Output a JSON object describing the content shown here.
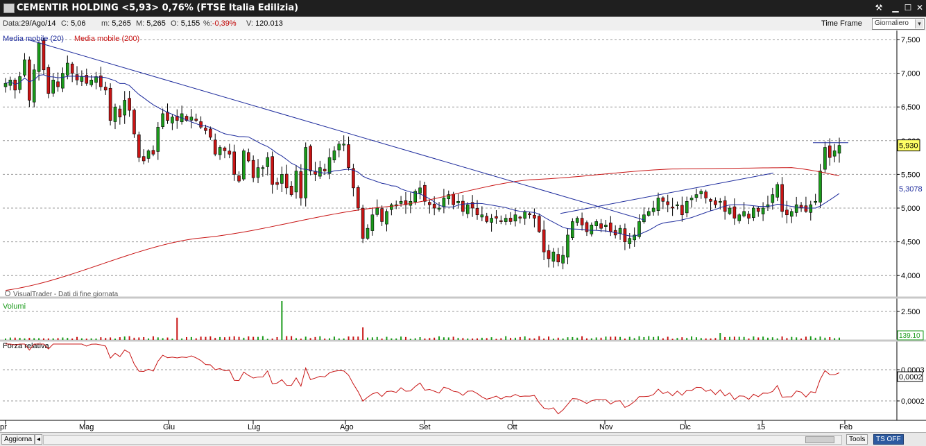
{
  "window": {
    "title": "CEMENTIR HOLDING <5,93> 0,76%  (FTSE Italia Edilizia)",
    "controls": [
      "tools-icon",
      "minimize-icon",
      "maximize-icon",
      "close-icon"
    ]
  },
  "info": {
    "data_label": "Data:",
    "data": "29/Ago/14",
    "c_label": "C:",
    "c": "5,06",
    "m_label": "m:",
    "m": "5,265",
    "o_label": "O:",
    "o": "5,155",
    "pct_label": "%:",
    "pct": "-0,39%",
    "v_label": "V:",
    "v": "120.013",
    "timeframe_label": "Time Frame",
    "timeframe_value": "Giornaliero"
  },
  "bottom": {
    "refresh": "Aggiorna",
    "tools": "Tools",
    "ts": "TS OFF"
  },
  "colors": {
    "up": "#1a9a1a",
    "down": "#c81414",
    "ma20": "#1c2a9c",
    "ma200": "#c81414",
    "trend": "#1c2a9c",
    "rsi": "#c81414",
    "vol_up": "#1a9a1a",
    "vol_down": "#c81414"
  },
  "chart_data": {
    "type": "candlestick",
    "price_panel": {
      "legend": [
        "Media mobile (20)",
        "Media mobile (200)"
      ],
      "watermark": "VisualTrader - Dati di fine giornata",
      "yticks": [
        "7,500",
        "7,000",
        "6,500",
        "6,000",
        "5,500",
        "5,000",
        "4,500",
        "4,000"
      ],
      "ylim": [
        3.75,
        7.6
      ],
      "last_price_label": "5,930",
      "ma_label": "5,3078"
    },
    "volume_panel": {
      "title": "Volumi",
      "yticks": [
        "2.500"
      ],
      "last_label": "139.10"
    },
    "rsi_panel": {
      "title": "Forza relativa",
      "yticks": [
        "0,0003",
        "0,0002"
      ],
      "last_label": "0,0002"
    },
    "months": [
      "Apr",
      "Mag",
      "Giu",
      "Lug",
      "Ago",
      "Set",
      "Ott",
      "Nov",
      "Dic",
      "15",
      "Feb"
    ],
    "closes": [
      6.85,
      6.9,
      6.75,
      6.95,
      7.2,
      6.6,
      7.05,
      7.45,
      7.05,
      6.7,
      6.9,
      6.8,
      7.0,
      7.15,
      7.0,
      6.9,
      6.95,
      6.85,
      6.9,
      6.95,
      6.8,
      6.75,
      6.3,
      6.5,
      6.35,
      6.6,
      6.45,
      6.1,
      5.75,
      5.7,
      5.85,
      5.8,
      6.2,
      6.4,
      6.3,
      6.35,
      6.3,
      6.4,
      6.3,
      6.35,
      6.3,
      6.2,
      6.15,
      6.05,
      5.8,
      5.9,
      5.85,
      5.8,
      5.5,
      5.4,
      5.85,
      5.7,
      5.45,
      5.6,
      5.6,
      5.75,
      5.35,
      5.35,
      5.5,
      5.3,
      5.2,
      5.55,
      5.15,
      5.9,
      5.55,
      5.5,
      5.6,
      5.55,
      5.75,
      5.85,
      5.95,
      5.95,
      5.6,
      5.3,
      5.0,
      4.55,
      4.7,
      4.9,
      5.0,
      4.8,
      4.95,
      5.05,
      5.05,
      5.1,
      5.05,
      5.1,
      5.25,
      5.3,
      5.1,
      5.05,
      5.0,
      5.0,
      5.15,
      5.2,
      5.05,
      5.1,
      4.95,
      5.05,
      5.0,
      4.9,
      4.9,
      4.8,
      4.85,
      4.85,
      4.8,
      4.85,
      4.8,
      4.9,
      4.85,
      4.95,
      4.9,
      4.85,
      4.65,
      4.35,
      4.25,
      4.35,
      4.2,
      4.3,
      4.6,
      4.8,
      4.85,
      4.75,
      4.65,
      4.75,
      4.8,
      4.7,
      4.75,
      4.65,
      4.6,
      4.7,
      4.5,
      4.55,
      4.6,
      4.8,
      4.9,
      4.95,
      5.0,
      5.15,
      5.1,
      5.05,
      5.0,
      5.05,
      4.9,
      5.1,
      5.15,
      5.2,
      5.25,
      5.15,
      5.1,
      5.05,
      5.1,
      4.95,
      5.0,
      4.85,
      4.9,
      4.95,
      4.85,
      5.0,
      4.95,
      5.0,
      5.05,
      5.2,
      5.35,
      4.95,
      4.9,
      4.95,
      5.05,
      5.0,
      4.95,
      5.05,
      5.1,
      5.55,
      5.9,
      5.75,
      5.85,
      5.93
    ],
    "ma200_anchors": [
      [
        0,
        3.78
      ],
      [
        40,
        4.55
      ],
      [
        80,
        5.02
      ],
      [
        110,
        5.42
      ],
      [
        140,
        5.58
      ],
      [
        165,
        5.6
      ],
      [
        182,
        5.4
      ]
    ]
  }
}
